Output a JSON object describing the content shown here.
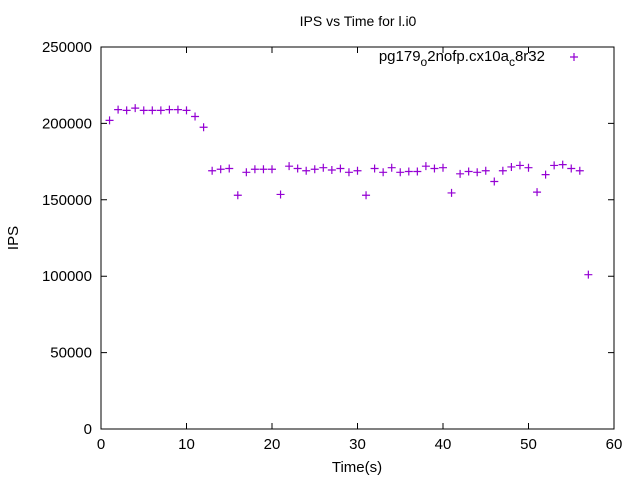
{
  "chart_data": {
    "type": "scatter",
    "title": "IPS vs Time for l.i0",
    "xlabel": "Time(s)",
    "ylabel": "IPS",
    "xlim": [
      0,
      60
    ],
    "ylim": [
      0,
      250000
    ],
    "xticks": [
      0,
      10,
      20,
      30,
      40,
      50,
      60
    ],
    "yticks": [
      0,
      50000,
      100000,
      150000,
      200000,
      250000
    ],
    "grid": false,
    "legend": {
      "position": "top-right",
      "series_label_parts": [
        "pg179",
        "o",
        "2nofp.cx10a",
        "c",
        "8r32"
      ]
    },
    "color": "#9400d3",
    "series": [
      {
        "name": "pg179_o2nofp.cx10a_c8r32",
        "x": [
          1,
          2,
          3,
          4,
          5,
          6,
          7,
          8,
          9,
          10,
          11,
          12,
          13,
          14,
          15,
          16,
          17,
          18,
          19,
          20,
          21,
          22,
          23,
          24,
          25,
          26,
          27,
          28,
          29,
          30,
          31,
          32,
          33,
          34,
          35,
          36,
          37,
          38,
          39,
          40,
          41,
          42,
          43,
          44,
          45,
          46,
          47,
          48,
          49,
          50,
          51,
          52,
          53,
          54,
          55,
          56,
          57
        ],
        "y": [
          202000,
          209000,
          208500,
          210000,
          208500,
          208500,
          208500,
          209000,
          209000,
          208500,
          204500,
          197500,
          169000,
          170000,
          170500,
          153000,
          168000,
          170000,
          170000,
          170000,
          153500,
          172000,
          170500,
          169000,
          170000,
          171000,
          169500,
          170500,
          168000,
          169000,
          153000,
          170500,
          168000,
          171000,
          168000,
          168500,
          168500,
          172000,
          170500,
          171000,
          154500,
          167000,
          168500,
          168000,
          169000,
          162000,
          169000,
          171500,
          172500,
          171000,
          155000,
          166500,
          172500,
          173000,
          170500,
          169000,
          101000
        ]
      }
    ]
  }
}
